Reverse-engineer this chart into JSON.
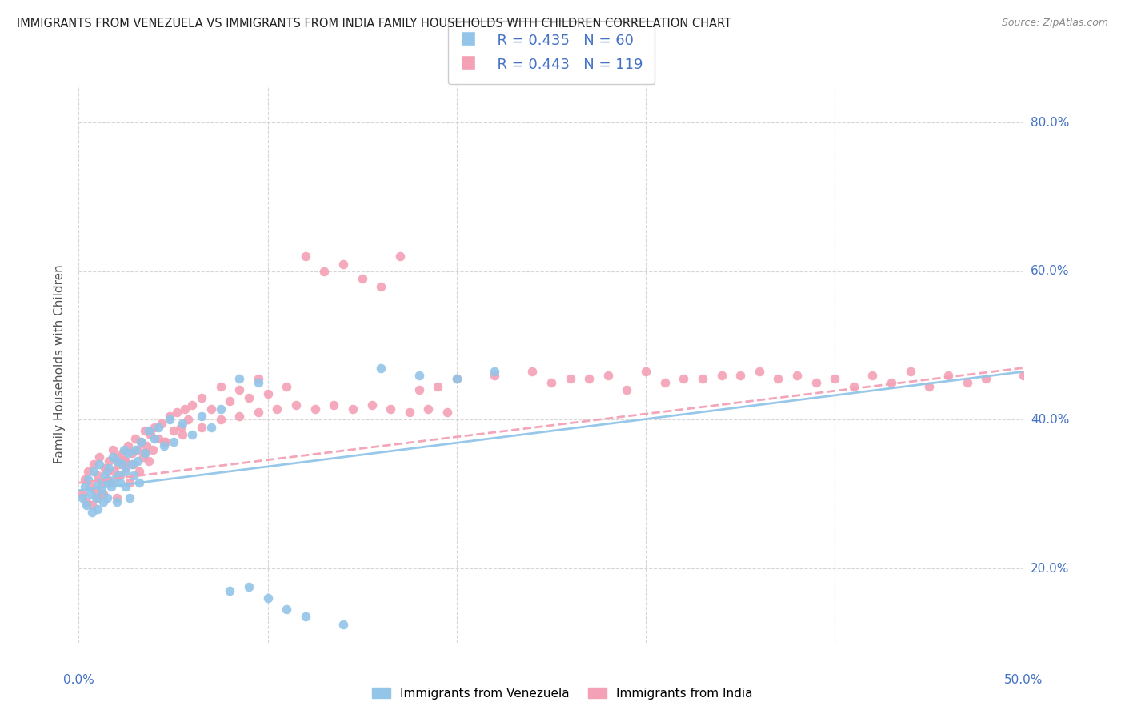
{
  "title": "IMMIGRANTS FROM VENEZUELA VS IMMIGRANTS FROM INDIA FAMILY HOUSEHOLDS WITH CHILDREN CORRELATION CHART",
  "source": "Source: ZipAtlas.com",
  "ylabel": "Family Households with Children",
  "color_venezuela": "#92C5E8",
  "color_india": "#F4A0B5",
  "color_text_blue": "#4472C4",
  "legend_R1": "R = 0.435",
  "legend_N1": "N = 60",
  "legend_R2": "R = 0.443",
  "legend_N2": "N = 119",
  "xlim": [
    0.0,
    0.5
  ],
  "ylim": [
    0.1,
    0.85
  ],
  "xtick_positions": [
    0.0,
    0.1,
    0.2,
    0.3,
    0.4,
    0.5
  ],
  "ytick_positions": [
    0.2,
    0.4,
    0.6,
    0.8
  ],
  "venezuela_x": [
    0.002,
    0.003,
    0.004,
    0.005,
    0.006,
    0.007,
    0.008,
    0.009,
    0.01,
    0.01,
    0.011,
    0.012,
    0.013,
    0.014,
    0.015,
    0.015,
    0.016,
    0.017,
    0.018,
    0.019,
    0.02,
    0.02,
    0.021,
    0.022,
    0.023,
    0.024,
    0.025,
    0.025,
    0.026,
    0.027,
    0.028,
    0.029,
    0.03,
    0.031,
    0.032,
    0.033,
    0.035,
    0.037,
    0.04,
    0.042,
    0.045,
    0.048,
    0.05,
    0.055,
    0.06,
    0.065,
    0.07,
    0.075,
    0.08,
    0.09,
    0.1,
    0.11,
    0.12,
    0.14,
    0.16,
    0.18,
    0.2,
    0.22,
    0.085,
    0.095
  ],
  "venezuela_y": [
    0.295,
    0.31,
    0.285,
    0.32,
    0.3,
    0.275,
    0.33,
    0.295,
    0.315,
    0.28,
    0.34,
    0.305,
    0.29,
    0.325,
    0.315,
    0.295,
    0.335,
    0.31,
    0.35,
    0.32,
    0.345,
    0.29,
    0.325,
    0.315,
    0.34,
    0.36,
    0.33,
    0.31,
    0.355,
    0.295,
    0.34,
    0.325,
    0.36,
    0.345,
    0.315,
    0.37,
    0.355,
    0.385,
    0.375,
    0.39,
    0.365,
    0.4,
    0.37,
    0.395,
    0.38,
    0.405,
    0.39,
    0.415,
    0.17,
    0.175,
    0.16,
    0.145,
    0.135,
    0.125,
    0.47,
    0.46,
    0.455,
    0.465,
    0.455,
    0.45
  ],
  "india_x": [
    0.002,
    0.003,
    0.004,
    0.005,
    0.006,
    0.007,
    0.008,
    0.009,
    0.01,
    0.01,
    0.011,
    0.012,
    0.013,
    0.014,
    0.015,
    0.016,
    0.017,
    0.018,
    0.019,
    0.02,
    0.02,
    0.021,
    0.022,
    0.023,
    0.024,
    0.025,
    0.026,
    0.027,
    0.028,
    0.029,
    0.03,
    0.031,
    0.032,
    0.033,
    0.034,
    0.035,
    0.036,
    0.037,
    0.038,
    0.039,
    0.04,
    0.042,
    0.044,
    0.046,
    0.048,
    0.05,
    0.052,
    0.054,
    0.056,
    0.058,
    0.06,
    0.065,
    0.07,
    0.075,
    0.08,
    0.085,
    0.09,
    0.095,
    0.1,
    0.11,
    0.12,
    0.13,
    0.14,
    0.15,
    0.16,
    0.17,
    0.18,
    0.19,
    0.2,
    0.22,
    0.24,
    0.26,
    0.28,
    0.3,
    0.32,
    0.34,
    0.36,
    0.38,
    0.4,
    0.42,
    0.44,
    0.46,
    0.48,
    0.5,
    0.25,
    0.27,
    0.29,
    0.31,
    0.33,
    0.35,
    0.37,
    0.39,
    0.41,
    0.43,
    0.45,
    0.47,
    0.015,
    0.025,
    0.035,
    0.045,
    0.055,
    0.065,
    0.075,
    0.085,
    0.095,
    0.105,
    0.115,
    0.125,
    0.135,
    0.145,
    0.155,
    0.165,
    0.175,
    0.185,
    0.195
  ],
  "india_y": [
    0.3,
    0.32,
    0.29,
    0.33,
    0.31,
    0.285,
    0.34,
    0.305,
    0.325,
    0.295,
    0.35,
    0.315,
    0.3,
    0.335,
    0.32,
    0.345,
    0.315,
    0.36,
    0.33,
    0.35,
    0.295,
    0.34,
    0.325,
    0.355,
    0.345,
    0.335,
    0.365,
    0.315,
    0.355,
    0.34,
    0.375,
    0.36,
    0.33,
    0.37,
    0.35,
    0.385,
    0.365,
    0.345,
    0.38,
    0.36,
    0.39,
    0.375,
    0.395,
    0.37,
    0.405,
    0.385,
    0.41,
    0.39,
    0.415,
    0.4,
    0.42,
    0.43,
    0.415,
    0.445,
    0.425,
    0.44,
    0.43,
    0.455,
    0.435,
    0.445,
    0.62,
    0.6,
    0.61,
    0.59,
    0.58,
    0.62,
    0.44,
    0.445,
    0.455,
    0.46,
    0.465,
    0.455,
    0.46,
    0.465,
    0.455,
    0.46,
    0.465,
    0.46,
    0.455,
    0.46,
    0.465,
    0.46,
    0.455,
    0.46,
    0.45,
    0.455,
    0.44,
    0.45,
    0.455,
    0.46,
    0.455,
    0.45,
    0.445,
    0.45,
    0.445,
    0.45,
    0.33,
    0.345,
    0.355,
    0.37,
    0.38,
    0.39,
    0.4,
    0.405,
    0.41,
    0.415,
    0.42,
    0.415,
    0.42,
    0.415,
    0.42,
    0.415,
    0.41,
    0.415,
    0.41
  ]
}
